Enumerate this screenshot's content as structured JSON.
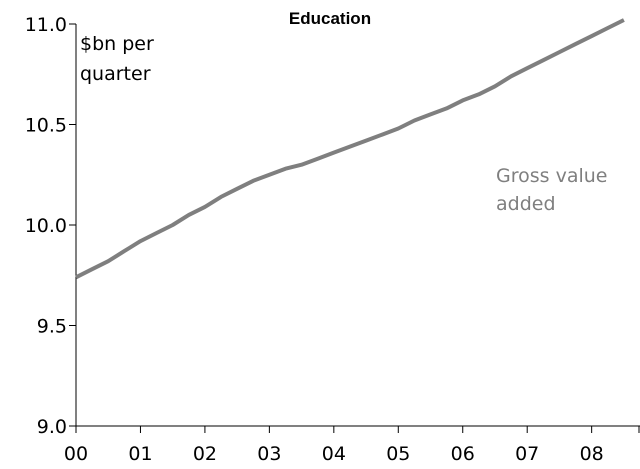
{
  "chart_data": {
    "type": "line",
    "title": "Education",
    "unit_label": [
      "$bn per",
      "quarter"
    ],
    "xlabel": "",
    "ylabel": "",
    "x_tick_labels": [
      "00",
      "01",
      "02",
      "03",
      "04",
      "05",
      "06",
      "07",
      "08"
    ],
    "y_tick_labels": [
      "11.0",
      "10.5",
      "10.0",
      "9.5",
      "9.0"
    ],
    "y_ticks": [
      11.0,
      10.5,
      10.0,
      9.5,
      9.0
    ],
    "ylim": [
      9.0,
      11.0
    ],
    "xlim": [
      2000.0,
      2008.75
    ],
    "grid": false,
    "series_label": [
      "Gross value",
      "added"
    ],
    "series": [
      {
        "name": "Gross value added",
        "color": "#7f7f7f",
        "x": [
          2000.0,
          2000.25,
          2000.5,
          2000.75,
          2001.0,
          2001.25,
          2001.5,
          2001.75,
          2002.0,
          2002.25,
          2002.5,
          2002.75,
          2003.0,
          2003.25,
          2003.5,
          2003.75,
          2004.0,
          2004.25,
          2004.5,
          2004.75,
          2005.0,
          2005.25,
          2005.5,
          2005.75,
          2006.0,
          2006.25,
          2006.5,
          2006.75,
          2007.0,
          2007.25,
          2007.5,
          2007.75,
          2008.0,
          2008.25,
          2008.5
        ],
        "values": [
          9.74,
          9.78,
          9.82,
          9.87,
          9.92,
          9.96,
          10.0,
          10.05,
          10.09,
          10.14,
          10.18,
          10.22,
          10.25,
          10.28,
          10.3,
          10.33,
          10.36,
          10.39,
          10.42,
          10.45,
          10.48,
          10.52,
          10.55,
          10.58,
          10.62,
          10.65,
          10.69,
          10.74,
          10.78,
          10.82,
          10.86,
          10.9,
          10.94,
          10.98,
          11.02
        ]
      }
    ]
  }
}
